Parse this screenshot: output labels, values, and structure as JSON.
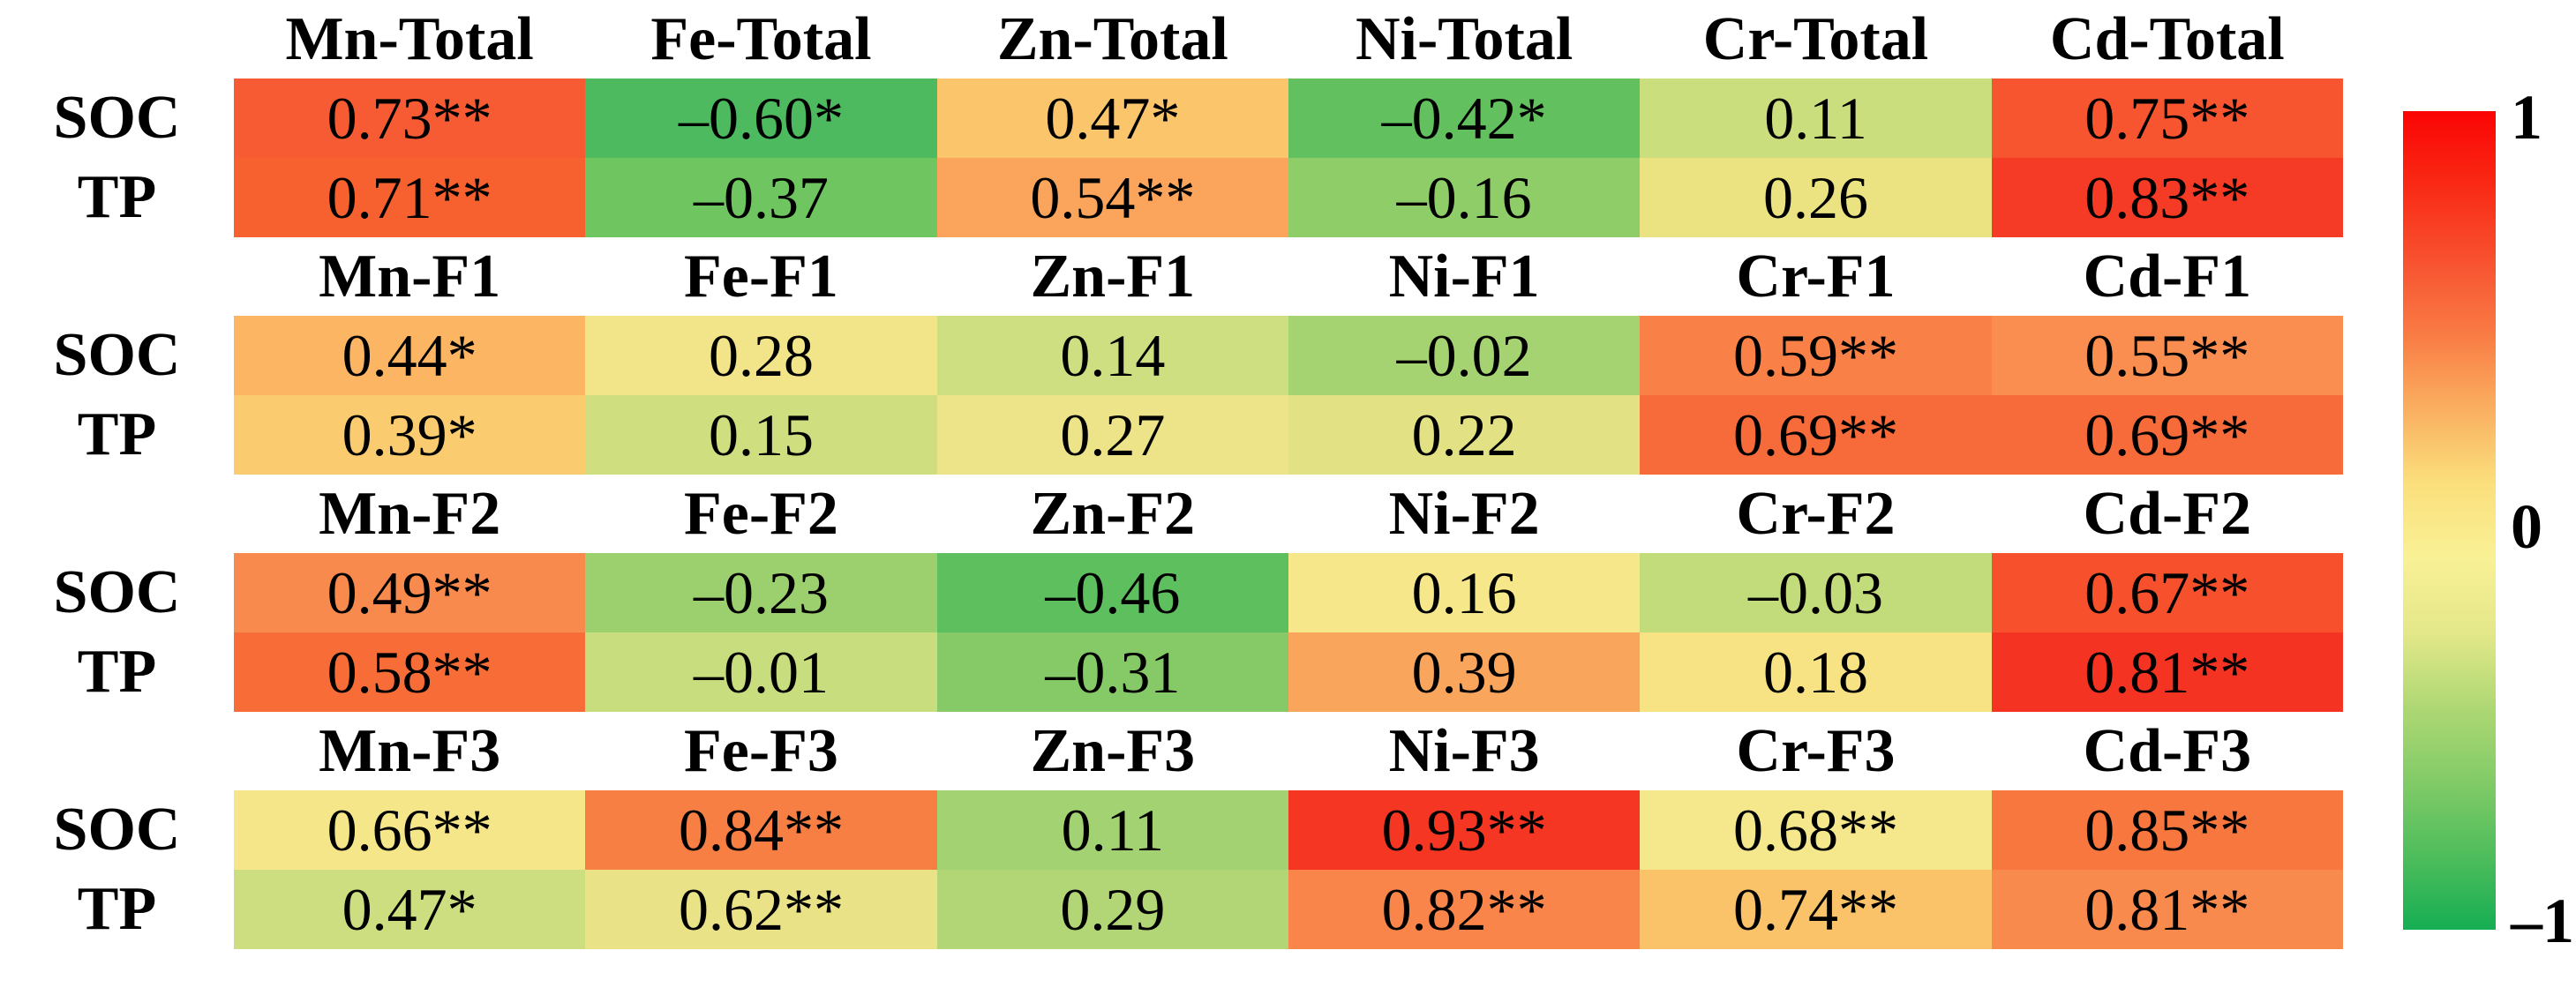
{
  "chart_data": {
    "type": "heatmap",
    "description": "Correlation heatmap between soil properties (SOC, TP) and metal fractions (Total, F1, F2, F3) for Mn, Fe, Zn, Ni, Cr, Cd; * and ** denote significance",
    "row_labels": [
      "SOC",
      "TP"
    ],
    "value_range": [
      -1,
      1
    ],
    "blocks": [
      {
        "name": "Total",
        "columns": [
          "Mn-Total",
          "Fe-Total",
          "Zn-Total",
          "Ni-Total",
          "Cr-Total",
          "Cd-Total"
        ],
        "rows": [
          {
            "label": "SOC",
            "cells": [
              {
                "text": "0.73**",
                "value": 0.73,
                "color": "#F75B33"
              },
              {
                "text": "–0.60*",
                "value": -0.6,
                "color": "#4DBA5F"
              },
              {
                "text": "0.47*",
                "value": 0.47,
                "color": "#FBC56B"
              },
              {
                "text": "–0.42*",
                "value": -0.42,
                "color": "#62C05F"
              },
              {
                "text": "0.11",
                "value": 0.11,
                "color": "#CBDE7D"
              },
              {
                "text": "0.75**",
                "value": 0.75,
                "color": "#F75530"
              }
            ]
          },
          {
            "label": "TP",
            "cells": [
              {
                "text": "0.71**",
                "value": 0.71,
                "color": "#F7602F"
              },
              {
                "text": "–0.37",
                "value": -0.37,
                "color": "#6FC55F"
              },
              {
                "text": "0.54**",
                "value": 0.54,
                "color": "#FAA55B"
              },
              {
                "text": "–0.16",
                "value": -0.16,
                "color": "#8FCD68"
              },
              {
                "text": "0.26",
                "value": 0.26,
                "color": "#EBE382"
              },
              {
                "text": "0.83**",
                "value": 0.83,
                "color": "#F53B26"
              }
            ]
          }
        ]
      },
      {
        "name": "F1",
        "columns": [
          "Mn-F1",
          "Fe-F1",
          "Zn-F1",
          "Ni-F1",
          "Cr-F1",
          "Cd-F1"
        ],
        "rows": [
          {
            "label": "SOC",
            "cells": [
              {
                "text": "0.44*",
                "value": 0.44,
                "color": "#FBB563"
              },
              {
                "text": "0.28",
                "value": 0.28,
                "color": "#F2E489"
              },
              {
                "text": "0.14",
                "value": 0.14,
                "color": "#CEDF81"
              },
              {
                "text": "–0.02",
                "value": -0.02,
                "color": "#A6D371"
              },
              {
                "text": "0.59**",
                "value": 0.59,
                "color": "#F98147"
              },
              {
                "text": "0.55**",
                "value": 0.55,
                "color": "#F98E50"
              }
            ]
          },
          {
            "label": "TP",
            "cells": [
              {
                "text": "0.39*",
                "value": 0.39,
                "color": "#FBCC6F"
              },
              {
                "text": "0.15",
                "value": 0.15,
                "color": "#CFDF80"
              },
              {
                "text": "0.27",
                "value": 0.27,
                "color": "#EDE388"
              },
              {
                "text": "0.22",
                "value": 0.22,
                "color": "#E2E184"
              },
              {
                "text": "0.69**",
                "value": 0.69,
                "color": "#F76A39"
              },
              {
                "text": "0.69**",
                "value": 0.69,
                "color": "#F76A39"
              }
            ]
          }
        ]
      },
      {
        "name": "F2",
        "columns": [
          "Mn-F2",
          "Fe-F2",
          "Zn-F2",
          "Ni-F2",
          "Cr-F2",
          "Cd-F2"
        ],
        "rows": [
          {
            "label": "SOC",
            "cells": [
              {
                "text": "0.49**",
                "value": 0.49,
                "color": "#F98A4E"
              },
              {
                "text": "–0.23",
                "value": -0.23,
                "color": "#9CD06E"
              },
              {
                "text": "–0.46",
                "value": -0.46,
                "color": "#5DBF5D"
              },
              {
                "text": "0.16",
                "value": 0.16,
                "color": "#F7E78B"
              },
              {
                "text": "–0.03",
                "value": -0.03,
                "color": "#C2DB7B"
              },
              {
                "text": "0.67**",
                "value": 0.67,
                "color": "#F6502C"
              }
            ]
          },
          {
            "label": "TP",
            "cells": [
              {
                "text": "0.58**",
                "value": 0.58,
                "color": "#F86C37"
              },
              {
                "text": "–0.01",
                "value": -0.01,
                "color": "#C8DD7D"
              },
              {
                "text": "–0.31",
                "value": -0.31,
                "color": "#85CA66"
              },
              {
                "text": "0.39",
                "value": 0.39,
                "color": "#FAA55C"
              },
              {
                "text": "0.18",
                "value": 0.18,
                "color": "#F7E284"
              },
              {
                "text": "0.81**",
                "value": 0.81,
                "color": "#F53322"
              }
            ]
          }
        ]
      },
      {
        "name": "F3",
        "columns": [
          "Mn-F3",
          "Fe-F3",
          "Zn-F3",
          "Ni-F3",
          "Cr-F3",
          "Cd-F3"
        ],
        "rows": [
          {
            "label": "SOC",
            "cells": [
              {
                "text": "0.66**",
                "value": 0.66,
                "color": "#F5E68A"
              },
              {
                "text": "0.84**",
                "value": 0.84,
                "color": "#F87F44"
              },
              {
                "text": "0.11",
                "value": 0.11,
                "color": "#A2D271"
              },
              {
                "text": "0.93**",
                "value": 0.93,
                "color": "#F43623"
              },
              {
                "text": "0.68**",
                "value": 0.68,
                "color": "#F5E78B"
              },
              {
                "text": "0.85**",
                "value": 0.85,
                "color": "#F8773F"
              }
            ]
          },
          {
            "label": "TP",
            "cells": [
              {
                "text": "0.47*",
                "value": 0.47,
                "color": "#CCDE7F"
              },
              {
                "text": "0.62**",
                "value": 0.62,
                "color": "#EAE287"
              },
              {
                "text": "0.29",
                "value": 0.29,
                "color": "#B2D675"
              },
              {
                "text": "0.82**",
                "value": 0.82,
                "color": "#F9854A"
              },
              {
                "text": "0.74**",
                "value": 0.74,
                "color": "#FBC369"
              },
              {
                "text": "0.81**",
                "value": 0.81,
                "color": "#F98A4D"
              }
            ]
          }
        ]
      }
    ],
    "colorbar": {
      "max": 1,
      "min": -1,
      "max_label": "1",
      "mid_label": "0",
      "min_label": "–1",
      "orientation": "vertical",
      "gradient": [
        "#FB0404",
        "#F92A15",
        "#F85130",
        "#F97B44",
        "#FAAF60",
        "#FBDF7C",
        "#F9F195",
        "#E4E88A",
        "#AFD874",
        "#82CB67",
        "#4FBD5C",
        "#16AE53"
      ]
    }
  }
}
